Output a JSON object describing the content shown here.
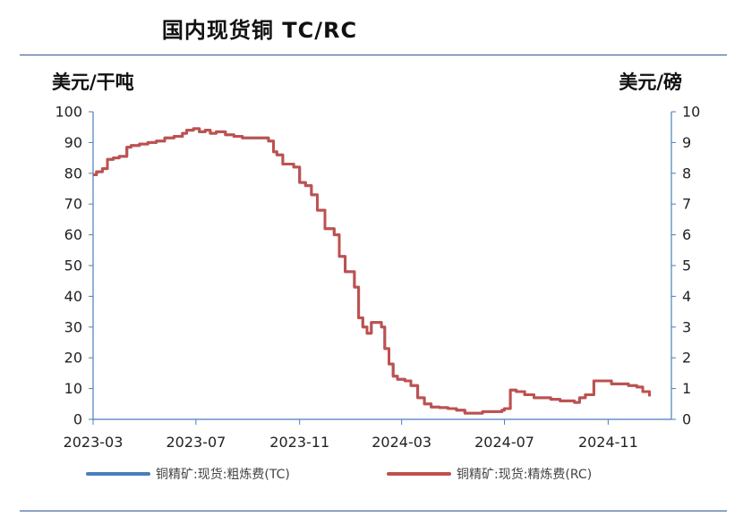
{
  "title": "国内现货铜 TC/RC",
  "chart_data": {
    "type": "line",
    "title": "国内现货铜 TC/RC",
    "left_unit": "美元/干吨",
    "right_unit": "美元/磅",
    "ylim_left": [
      0,
      100
    ],
    "ylim_right": [
      0,
      10
    ],
    "left_ticks": [
      "100",
      "90",
      "80",
      "70",
      "60",
      "50",
      "40",
      "30",
      "20",
      "10",
      "0"
    ],
    "right_ticks": [
      "10",
      "9",
      "8",
      "7",
      "6",
      "5",
      "4",
      "3",
      "2",
      "1",
      "0"
    ],
    "x_ticks": [
      "2023-03",
      "2023-07",
      "2023-11",
      "2024-03",
      "2024-07",
      "2024-11"
    ],
    "xlim": [
      "2023-03-01",
      "2025-01-15"
    ],
    "grid": false,
    "legend_position": "bottom",
    "series": [
      {
        "name": "铜精矿:现货:粗炼费(TC)",
        "axis": "left",
        "color": "#4a7ebb",
        "x": [
          "2023-03-01",
          "2023-03-05",
          "2023-03-12",
          "2023-03-18",
          "2023-03-25",
          "2023-04-01",
          "2023-04-10",
          "2023-04-15",
          "2023-04-25",
          "2023-05-05",
          "2023-05-15",
          "2023-05-25",
          "2023-06-05",
          "2023-06-15",
          "2023-06-20",
          "2023-06-28",
          "2023-07-05",
          "2023-07-12",
          "2023-07-18",
          "2023-07-25",
          "2023-08-05",
          "2023-08-15",
          "2023-08-25",
          "2023-09-05",
          "2023-09-15",
          "2023-09-25",
          "2023-10-01",
          "2023-10-05",
          "2023-10-12",
          "2023-10-18",
          "2023-10-25",
          "2023-11-01",
          "2023-11-08",
          "2023-11-15",
          "2023-11-22",
          "2023-12-01",
          "2023-12-06",
          "2023-12-12",
          "2023-12-18",
          "2023-12-25",
          "2024-01-05",
          "2024-01-10",
          "2024-01-15",
          "2024-01-20",
          "2024-01-25",
          "2024-02-01",
          "2024-02-06",
          "2024-02-10",
          "2024-02-15",
          "2024-02-20",
          "2024-02-25",
          "2024-03-05",
          "2024-03-12",
          "2024-03-20",
          "2024-03-28",
          "2024-04-05",
          "2024-04-15",
          "2024-04-25",
          "2024-05-05",
          "2024-05-15",
          "2024-05-25",
          "2024-06-05",
          "2024-06-15",
          "2024-06-22",
          "2024-06-28",
          "2024-07-01",
          "2024-07-08",
          "2024-07-15",
          "2024-07-25",
          "2024-08-05",
          "2024-08-15",
          "2024-08-25",
          "2024-09-05",
          "2024-09-15",
          "2024-09-22",
          "2024-09-28",
          "2024-10-05",
          "2024-10-15",
          "2024-10-25",
          "2024-11-05",
          "2024-11-15",
          "2024-11-25",
          "2024-12-05",
          "2024-12-12",
          "2024-12-20"
        ],
        "values": [
          79.5,
          80.5,
          81.5,
          84.5,
          85,
          85.5,
          88.5,
          89,
          89.5,
          90,
          90.5,
          91.5,
          92,
          93,
          94,
          94.5,
          93.5,
          94,
          93,
          93.5,
          92.5,
          92,
          91.5,
          91.5,
          91.5,
          90.5,
          87,
          86,
          83,
          83,
          82,
          77,
          76,
          73,
          68,
          62,
          62,
          60,
          53,
          48,
          43,
          33,
          30,
          28,
          31.5,
          31.5,
          30,
          23,
          18,
          14,
          13,
          12.5,
          11,
          7,
          5,
          4,
          3.8,
          3.5,
          3,
          2,
          2,
          2.5,
          2.5,
          2.5,
          3,
          3.5,
          9.5,
          9,
          8,
          7,
          7,
          6.5,
          6,
          6,
          5.5,
          7,
          8,
          12.5,
          12.5,
          11.5,
          11.5,
          11,
          10.5,
          9,
          7.5
        ]
      },
      {
        "name": "铜精矿:现货:精炼费(RC)",
        "axis": "right",
        "color": "#c0504d",
        "x": [
          "2023-03-01",
          "2023-03-05",
          "2023-03-12",
          "2023-03-18",
          "2023-03-25",
          "2023-04-01",
          "2023-04-10",
          "2023-04-15",
          "2023-04-25",
          "2023-05-05",
          "2023-05-15",
          "2023-05-25",
          "2023-06-05",
          "2023-06-15",
          "2023-06-20",
          "2023-06-28",
          "2023-07-05",
          "2023-07-12",
          "2023-07-18",
          "2023-07-25",
          "2023-08-05",
          "2023-08-15",
          "2023-08-25",
          "2023-09-05",
          "2023-09-15",
          "2023-09-25",
          "2023-10-01",
          "2023-10-05",
          "2023-10-12",
          "2023-10-18",
          "2023-10-25",
          "2023-11-01",
          "2023-11-08",
          "2023-11-15",
          "2023-11-22",
          "2023-12-01",
          "2023-12-06",
          "2023-12-12",
          "2023-12-18",
          "2023-12-25",
          "2024-01-05",
          "2024-01-10",
          "2024-01-15",
          "2024-01-20",
          "2024-01-25",
          "2024-02-01",
          "2024-02-06",
          "2024-02-10",
          "2024-02-15",
          "2024-02-20",
          "2024-02-25",
          "2024-03-05",
          "2024-03-12",
          "2024-03-20",
          "2024-03-28",
          "2024-04-05",
          "2024-04-15",
          "2024-04-25",
          "2024-05-05",
          "2024-05-15",
          "2024-05-25",
          "2024-06-05",
          "2024-06-15",
          "2024-06-22",
          "2024-06-28",
          "2024-07-01",
          "2024-07-08",
          "2024-07-15",
          "2024-07-25",
          "2024-08-05",
          "2024-08-15",
          "2024-08-25",
          "2024-09-05",
          "2024-09-15",
          "2024-09-22",
          "2024-09-28",
          "2024-10-05",
          "2024-10-15",
          "2024-10-25",
          "2024-11-05",
          "2024-11-15",
          "2024-11-25",
          "2024-12-05",
          "2024-12-12",
          "2024-12-20"
        ],
        "values": [
          7.95,
          8.05,
          8.15,
          8.45,
          8.5,
          8.55,
          8.85,
          8.9,
          8.95,
          9,
          9.05,
          9.15,
          9.2,
          9.3,
          9.4,
          9.45,
          9.35,
          9.4,
          9.3,
          9.35,
          9.25,
          9.2,
          9.15,
          9.15,
          9.15,
          9.05,
          8.7,
          8.6,
          8.3,
          8.3,
          8.2,
          7.7,
          7.6,
          7.3,
          6.8,
          6.2,
          6.2,
          6,
          5.3,
          4.8,
          4.3,
          3.3,
          3,
          2.8,
          3.15,
          3.15,
          3,
          2.3,
          1.8,
          1.4,
          1.3,
          1.25,
          1.1,
          0.7,
          0.5,
          0.4,
          0.38,
          0.35,
          0.3,
          0.2,
          0.2,
          0.25,
          0.25,
          0.25,
          0.3,
          0.35,
          0.95,
          0.9,
          0.8,
          0.7,
          0.7,
          0.65,
          0.6,
          0.6,
          0.55,
          0.7,
          0.8,
          1.25,
          1.25,
          1.15,
          1.15,
          1.1,
          1.05,
          0.9,
          0.75
        ]
      }
    ]
  }
}
